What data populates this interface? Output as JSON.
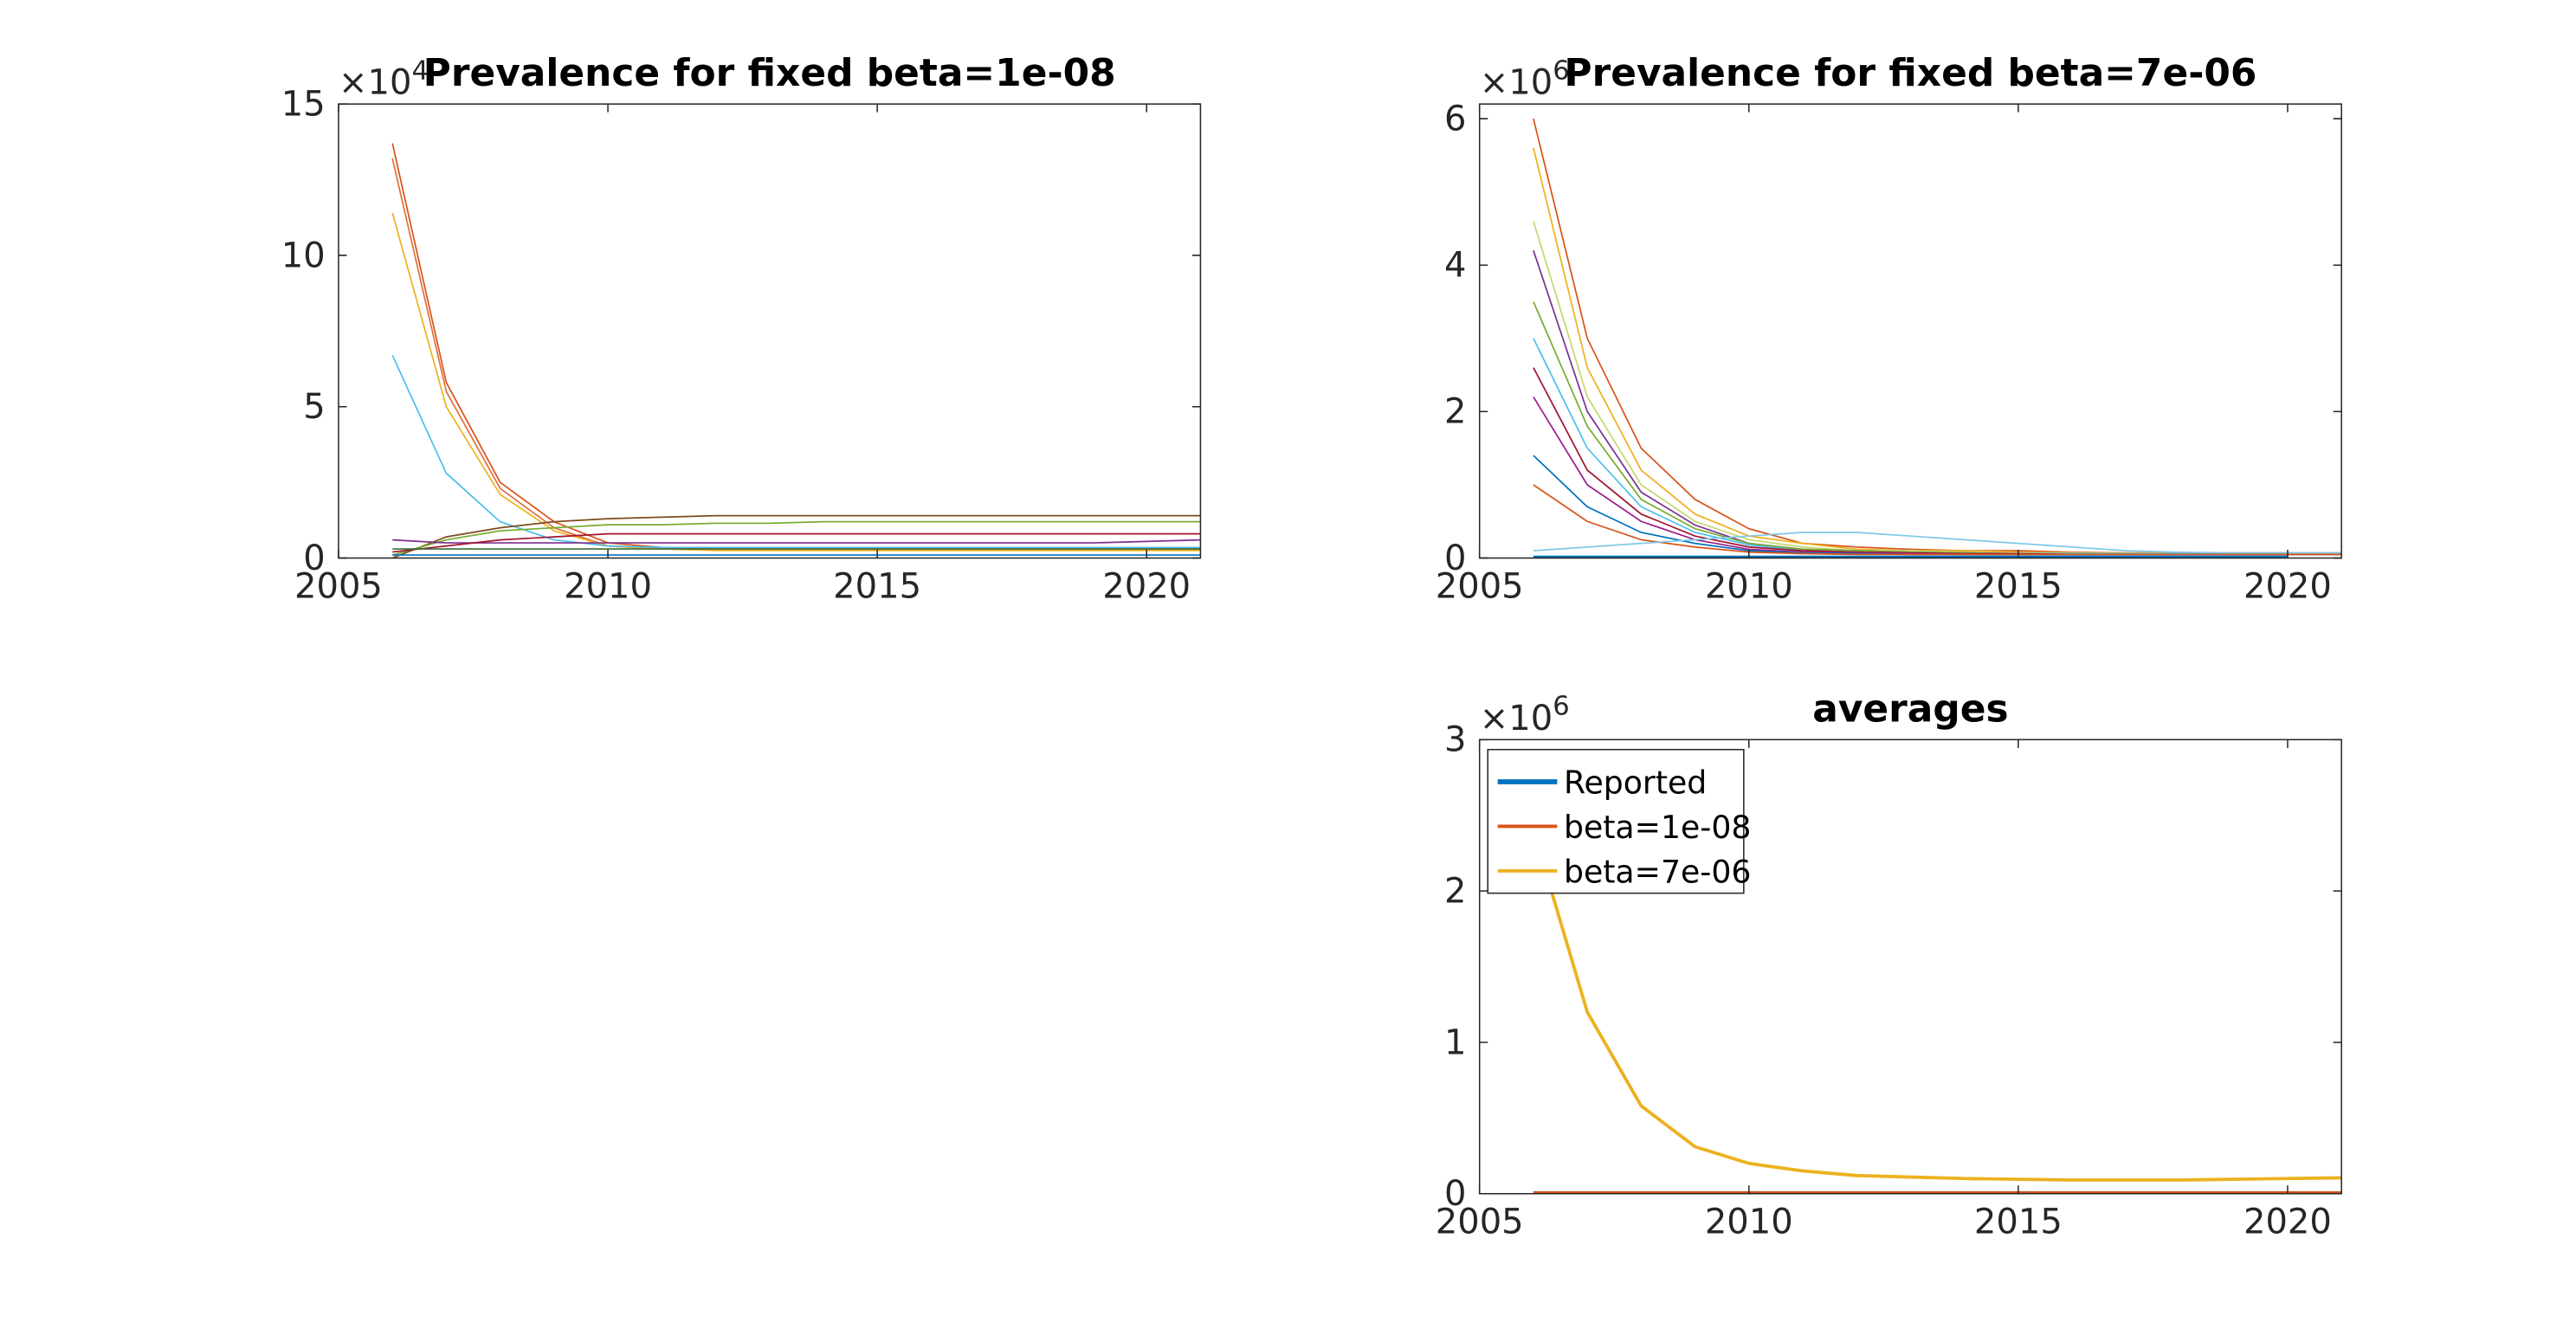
{
  "chart_data": [
    {
      "type": "line",
      "title": "Prevalence for fixed beta=1e-08",
      "y_multiplier": {
        "base": "×10",
        "exponent": "4"
      },
      "x": [
        2006,
        2007,
        2008,
        2009,
        2010,
        2011,
        2012,
        2013,
        2014,
        2015,
        2016,
        2017,
        2018,
        2019,
        2020,
        2021
      ],
      "xlim": [
        2005,
        2021
      ],
      "xticks": [
        2005,
        2010,
        2015,
        2020
      ],
      "ylim": [
        0,
        15
      ],
      "yticks": [
        0,
        5,
        10,
        15
      ],
      "series": [
        {
          "color": "#d95319",
          "values": [
            13.7,
            5.8,
            2.5,
            1.2,
            0.5,
            0.35,
            0.3,
            0.3,
            0.3,
            0.3,
            0.3,
            0.3,
            0.3,
            0.3,
            0.3,
            0.3
          ]
        },
        {
          "color": "#e07040",
          "values": [
            13.2,
            5.5,
            2.3,
            1.0,
            0.4,
            0.3,
            0.3,
            0.3,
            0.3,
            0.3,
            0.3,
            0.3,
            0.3,
            0.3,
            0.3,
            0.3
          ]
        },
        {
          "color": "#edb120",
          "values": [
            11.4,
            5.0,
            2.1,
            0.9,
            0.4,
            0.3,
            0.25,
            0.25,
            0.25,
            0.25,
            0.25,
            0.25,
            0.25,
            0.25,
            0.25,
            0.25
          ]
        },
        {
          "color": "#4dbeee",
          "values": [
            6.7,
            2.8,
            1.2,
            0.6,
            0.4,
            0.35,
            0.35,
            0.35,
            0.35,
            0.35,
            0.35,
            0.35,
            0.35,
            0.35,
            0.35,
            0.35
          ]
        },
        {
          "color": "#7e4a1e",
          "values": [
            0,
            0.7,
            1.0,
            1.2,
            1.3,
            1.35,
            1.4,
            1.4,
            1.4,
            1.4,
            1.4,
            1.4,
            1.4,
            1.4,
            1.4,
            1.4
          ]
        },
        {
          "color": "#77ac30",
          "values": [
            0.1,
            0.6,
            0.9,
            1.0,
            1.1,
            1.1,
            1.15,
            1.15,
            1.2,
            1.2,
            1.2,
            1.2,
            1.2,
            1.2,
            1.2,
            1.2
          ]
        },
        {
          "color": "#7e2f8e",
          "values": [
            0.6,
            0.5,
            0.5,
            0.5,
            0.5,
            0.5,
            0.5,
            0.5,
            0.5,
            0.5,
            0.5,
            0.5,
            0.5,
            0.5,
            0.55,
            0.6
          ]
        },
        {
          "color": "#0072bd",
          "values": [
            0.1,
            0.1,
            0.1,
            0.1,
            0.1,
            0.1,
            0.1,
            0.1,
            0.1,
            0.1,
            0.1,
            0.1,
            0.1,
            0.1,
            0.1,
            0.1
          ]
        },
        {
          "color": "#a2142f",
          "values": [
            0.2,
            0.4,
            0.6,
            0.7,
            0.8,
            0.8,
            0.8,
            0.8,
            0.8,
            0.8,
            0.8,
            0.8,
            0.8,
            0.8,
            0.8,
            0.8
          ]
        },
        {
          "color": "#3a6b35",
          "values": [
            0.3,
            0.3,
            0.3,
            0.3,
            0.3,
            0.3,
            0.3,
            0.3,
            0.3,
            0.3,
            0.3,
            0.3,
            0.3,
            0.3,
            0.3,
            0.3
          ]
        }
      ]
    },
    {
      "type": "line",
      "title": "Prevalence for fixed beta=7e-06",
      "y_multiplier": {
        "base": "×10",
        "exponent": "6"
      },
      "x": [
        2006,
        2007,
        2008,
        2009,
        2010,
        2011,
        2012,
        2013,
        2014,
        2015,
        2016,
        2017,
        2018,
        2019,
        2020,
        2021
      ],
      "xlim": [
        2005,
        2021
      ],
      "xticks": [
        2005,
        2010,
        2015,
        2020
      ],
      "ylim": [
        0,
        6.2
      ],
      "yticks": [
        0,
        2,
        4,
        6
      ],
      "series": [
        {
          "color": "#d95319",
          "values": [
            6.0,
            3.0,
            1.5,
            0.8,
            0.4,
            0.2,
            0.15,
            0.12,
            0.1,
            0.1,
            0.08,
            0.07,
            0.07,
            0.07,
            0.07,
            0.07
          ]
        },
        {
          "color": "#edb120",
          "values": [
            5.6,
            2.6,
            1.2,
            0.6,
            0.3,
            0.2,
            0.12,
            0.1,
            0.1,
            0.08,
            0.07,
            0.07,
            0.07,
            0.07,
            0.07,
            0.07
          ]
        },
        {
          "color": "#c5d86d",
          "values": [
            4.6,
            2.2,
            1.0,
            0.5,
            0.25,
            0.15,
            0.1,
            0.1,
            0.08,
            0.07,
            0.07,
            0.06,
            0.06,
            0.06,
            0.06,
            0.06
          ]
        },
        {
          "color": "#7e2f8e",
          "values": [
            4.2,
            2.0,
            0.9,
            0.45,
            0.2,
            0.12,
            0.1,
            0.08,
            0.07,
            0.06,
            0.06,
            0.06,
            0.06,
            0.06,
            0.06,
            0.06
          ]
        },
        {
          "color": "#77ac30",
          "values": [
            3.5,
            1.8,
            0.8,
            0.4,
            0.2,
            0.12,
            0.1,
            0.08,
            0.07,
            0.06,
            0.06,
            0.06,
            0.06,
            0.06,
            0.06,
            0.06
          ]
        },
        {
          "color": "#4dbeee",
          "values": [
            3.0,
            1.5,
            0.7,
            0.35,
            0.18,
            0.1,
            0.08,
            0.07,
            0.06,
            0.06,
            0.06,
            0.06,
            0.06,
            0.06,
            0.06,
            0.06
          ]
        },
        {
          "color": "#a2142f",
          "values": [
            2.6,
            1.2,
            0.6,
            0.3,
            0.15,
            0.1,
            0.08,
            0.07,
            0.06,
            0.06,
            0.05,
            0.05,
            0.05,
            0.05,
            0.05,
            0.05
          ]
        },
        {
          "color": "#9b1d8a",
          "values": [
            2.2,
            1.0,
            0.5,
            0.25,
            0.12,
            0.08,
            0.07,
            0.06,
            0.05,
            0.05,
            0.05,
            0.05,
            0.05,
            0.05,
            0.05,
            0.05
          ]
        },
        {
          "color": "#0072bd",
          "values": [
            1.4,
            0.7,
            0.35,
            0.2,
            0.1,
            0.07,
            0.06,
            0.05,
            0.05,
            0.05,
            0.05,
            0.05,
            0.05,
            0.05,
            0.05,
            0.05
          ]
        },
        {
          "color": "#d95319",
          "values": [
            1.0,
            0.5,
            0.25,
            0.15,
            0.08,
            0.06,
            0.05,
            0.05,
            0.05,
            0.05,
            0.05,
            0.05,
            0.05,
            0.05,
            0.05,
            0.05
          ]
        },
        {
          "color": "#7fc8e8",
          "values": [
            0.1,
            0.15,
            0.2,
            0.25,
            0.3,
            0.35,
            0.35,
            0.3,
            0.25,
            0.2,
            0.15,
            0.1,
            0.08,
            0.07,
            0.07,
            0.07
          ]
        },
        {
          "color": "#0072bd",
          "width": 3,
          "values": [
            0,
            0,
            0,
            0,
            0,
            0,
            0,
            0,
            0,
            0,
            0,
            0,
            0,
            0,
            0,
            null
          ]
        }
      ]
    },
    {
      "type": "line",
      "title": "averages",
      "y_multiplier": {
        "base": "×10",
        "exponent": "6"
      },
      "x": [
        2006,
        2007,
        2008,
        2009,
        2010,
        2011,
        2012,
        2013,
        2014,
        2015,
        2016,
        2017,
        2018,
        2019,
        2020,
        2021
      ],
      "xlim": [
        2005,
        2021
      ],
      "xticks": [
        2005,
        2010,
        2015,
        2020
      ],
      "ylim": [
        0,
        3
      ],
      "yticks": [
        0,
        1,
        2,
        3
      ],
      "legend": "upper left",
      "series": [
        {
          "name": "Reported",
          "color": "#0072bd",
          "width": 3,
          "values": [
            0,
            0,
            0,
            0,
            0,
            0,
            0,
            0,
            0,
            0,
            0,
            0,
            0,
            0,
            0,
            null
          ]
        },
        {
          "name": "beta=1e-08",
          "color": "#d95319",
          "width": 2,
          "values": [
            0.005,
            0.005,
            0.005,
            0.005,
            0.005,
            0.005,
            0.005,
            0.005,
            0.005,
            0.005,
            0.005,
            0.005,
            0.005,
            0.005,
            0.005,
            0.005
          ]
        },
        {
          "name": "beta=7e-06",
          "color": "#edb120",
          "width": 2,
          "values": [
            2.4,
            1.2,
            0.58,
            0.31,
            0.2,
            0.15,
            0.12,
            0.11,
            0.1,
            0.095,
            0.09,
            0.09,
            0.09,
            0.095,
            0.1,
            0.105
          ]
        }
      ]
    }
  ]
}
